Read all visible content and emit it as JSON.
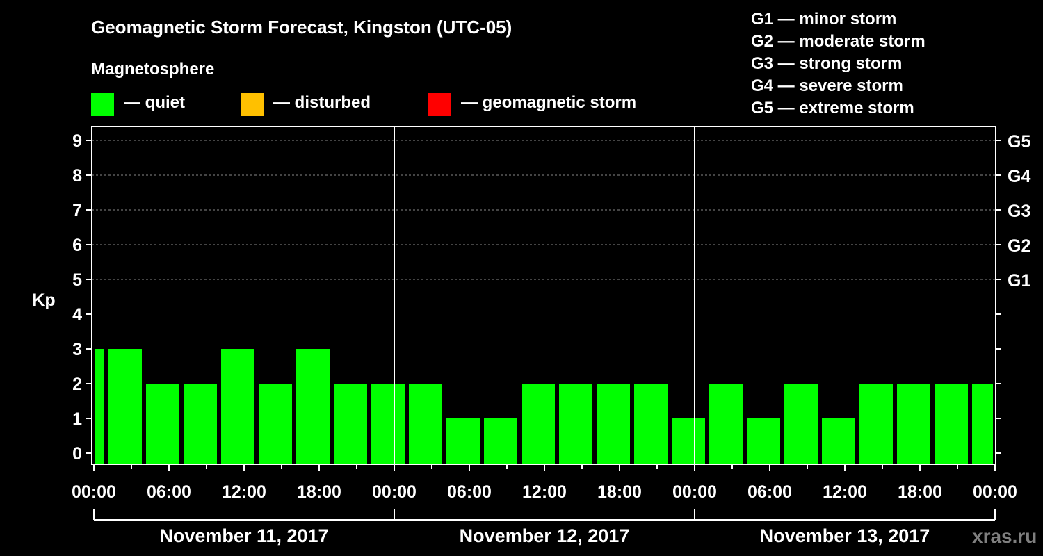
{
  "chart_data": {
    "type": "bar",
    "title": "Geomagnetic Storm Forecast, Kingston (UTC-05)",
    "ylabel": "Kp",
    "ylim": [
      0,
      9
    ],
    "yticks": [
      "0",
      "1",
      "2",
      "3",
      "4",
      "5",
      "6",
      "7",
      "8",
      "9"
    ],
    "right_ticks": [
      {
        "kp": 5,
        "label": "G1"
      },
      {
        "kp": 6,
        "label": "G2"
      },
      {
        "kp": 7,
        "label": "G3"
      },
      {
        "kp": 8,
        "label": "G4"
      },
      {
        "kp": 9,
        "label": "G5"
      }
    ],
    "xlim_hours": [
      0,
      72
    ],
    "xtick_labels": [
      "00:00",
      "06:00",
      "12:00",
      "18:00",
      "00:00",
      "06:00",
      "12:00",
      "18:00",
      "00:00",
      "06:00",
      "12:00",
      "18:00",
      "00:00"
    ],
    "dates": [
      "November 11, 2017",
      "November 12, 2017",
      "November 13, 2017"
    ],
    "bars": [
      {
        "start": 0,
        "end": 1,
        "kp": 3
      },
      {
        "start": 1,
        "end": 4,
        "kp": 3
      },
      {
        "start": 4,
        "end": 7,
        "kp": 2
      },
      {
        "start": 7,
        "end": 10,
        "kp": 2
      },
      {
        "start": 10,
        "end": 13,
        "kp": 3
      },
      {
        "start": 13,
        "end": 16,
        "kp": 2
      },
      {
        "start": 16,
        "end": 19,
        "kp": 3
      },
      {
        "start": 19,
        "end": 22,
        "kp": 2
      },
      {
        "start": 22,
        "end": 25,
        "kp": 2
      },
      {
        "start": 25,
        "end": 28,
        "kp": 2
      },
      {
        "start": 28,
        "end": 31,
        "kp": 1
      },
      {
        "start": 31,
        "end": 34,
        "kp": 1
      },
      {
        "start": 34,
        "end": 37,
        "kp": 2
      },
      {
        "start": 37,
        "end": 40,
        "kp": 2
      },
      {
        "start": 40,
        "end": 43,
        "kp": 2
      },
      {
        "start": 43,
        "end": 46,
        "kp": 2
      },
      {
        "start": 46,
        "end": 49,
        "kp": 1
      },
      {
        "start": 49,
        "end": 52,
        "kp": 2
      },
      {
        "start": 52,
        "end": 55,
        "kp": 1
      },
      {
        "start": 55,
        "end": 58,
        "kp": 2
      },
      {
        "start": 58,
        "end": 61,
        "kp": 1
      },
      {
        "start": 61,
        "end": 64,
        "kp": 2
      },
      {
        "start": 64,
        "end": 67,
        "kp": 2
      },
      {
        "start": 67,
        "end": 70,
        "kp": 2
      },
      {
        "start": 70,
        "end": 72,
        "kp": 2
      }
    ],
    "grid": "dashed horizontal at Kp 5-9",
    "legend": {
      "heading": "Magnetosphere",
      "items": [
        {
          "label": "— quiet",
          "color": "#00ff00"
        },
        {
          "label": "— disturbed",
          "color": "#ffc000"
        },
        {
          "label": "— geomagnetic storm",
          "color": "#ff0000"
        }
      ]
    },
    "g_scale": [
      "G1 — minor storm",
      "G2 — moderate storm",
      "G3 — strong storm",
      "G4 — severe storm",
      "G5 — extreme storm"
    ]
  },
  "watermark": "xras.ru"
}
